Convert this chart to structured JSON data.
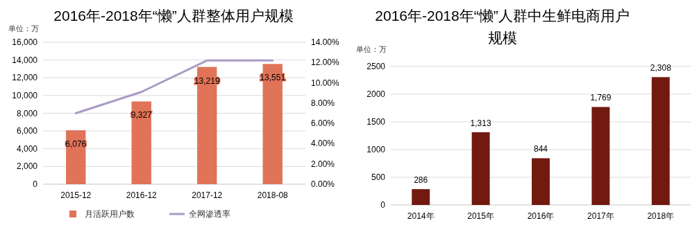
{
  "chart_data": [
    {
      "type": "bar",
      "title": "2016年-2018年“懒”人群整体用户规模",
      "ylabel": "单位：万",
      "categories": [
        "2015-12",
        "2016-12",
        "2017-12",
        "2018-08"
      ],
      "series": [
        {
          "name": "月活跃用户数",
          "type": "bar",
          "color": "#e07358",
          "values": [
            6076,
            9327,
            13219,
            13551
          ],
          "value_labels": [
            "6,076",
            "9,327",
            "13,219",
            "13,551"
          ]
        },
        {
          "name": "全网渗透率",
          "type": "line",
          "axis": "y2",
          "color": "#a99bc6",
          "values": [
            7.0,
            9.1,
            12.2,
            12.2
          ]
        }
      ],
      "ylim": [
        0,
        16000
      ],
      "yticks": [
        0,
        {
          "value": 2000,
          "label": "2,000"
        },
        {
          "value": 4000,
          "label": "4,000"
        },
        {
          "value": 6000,
          "label": "6,000"
        },
        {
          "value": 8000,
          "label": "8,000"
        },
        {
          "value": 10000,
          "label": "10,000"
        },
        {
          "value": 12000,
          "label": "12,000"
        },
        {
          "value": 14000,
          "label": "14,000"
        },
        {
          "value": 16000,
          "label": "16,000"
        }
      ],
      "y2lim": [
        0,
        14
      ],
      "y2ticks": [
        {
          "value": 0,
          "label": "0.00%"
        },
        {
          "value": 2,
          "label": "2.00%"
        },
        {
          "value": 4,
          "label": "4.00%"
        },
        {
          "value": 6,
          "label": "6.00%"
        },
        {
          "value": 8,
          "label": "8.00%"
        },
        {
          "value": 10,
          "label": "10.00%"
        },
        {
          "value": 12,
          "label": "12.00%"
        },
        {
          "value": 14,
          "label": "14.00%"
        }
      ],
      "grid": "y",
      "legend": "bottom"
    },
    {
      "type": "bar",
      "title": "2016年-2018年“懒”人群中生鲜电商用户规模",
      "ylabel": "单位：万",
      "categories": [
        "2014年",
        "2015年",
        "2016年",
        "2017年",
        "2018年"
      ],
      "color": "#731a10",
      "values": [
        286,
        1313,
        844,
        1769,
        2308
      ],
      "value_labels": [
        "286",
        "1,313",
        "844",
        "1,769",
        "2,308"
      ],
      "ylim": [
        0,
        2500
      ],
      "yticks": [
        0,
        500,
        1000,
        1500,
        2000,
        2500
      ],
      "grid": "y"
    }
  ]
}
